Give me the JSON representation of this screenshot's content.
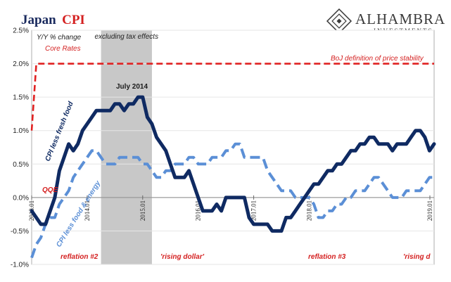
{
  "title": {
    "part1": "Japan",
    "part2": "CPI"
  },
  "logo": {
    "name": "ALHAMBRA",
    "sub": "INVESTMENTS"
  },
  "colors": {
    "navy": "#0f2a62",
    "light_blue": "#5b8fd6",
    "red": "#e02020",
    "shade": "#c8c8c8",
    "grid": "#e6e6e6"
  },
  "chart_data": {
    "type": "line",
    "ylabel": "Y/Y % change",
    "ylabel2": "Core Rates",
    "ylim": [
      -1.0,
      2.5
    ],
    "yticks": [
      "2.5%",
      "2.0%",
      "1.5%",
      "1.0%",
      "0.5%",
      "0.0%",
      "-0.5%",
      "-1.0%"
    ],
    "xticks": [
      "2013.01",
      "2014.01",
      "2015.01",
      "2016.01",
      "2017.01",
      "2018.01",
      "2019.01"
    ],
    "x_start": "2013.01",
    "x_end": "2019.01",
    "series": [
      {
        "name": "CPI less fresh food",
        "style": "solid",
        "values": [
          -0.2,
          -0.3,
          -0.4,
          -0.4,
          -0.2,
          0.0,
          0.4,
          0.6,
          0.8,
          0.7,
          0.8,
          1.0,
          1.1,
          1.2,
          1.3,
          1.3,
          1.3,
          1.3,
          1.4,
          1.4,
          1.3,
          1.4,
          1.4,
          1.5,
          1.5,
          1.2,
          1.1,
          0.9,
          0.8,
          0.7,
          0.5,
          0.3,
          0.3,
          0.3,
          0.4,
          0.2,
          0.0,
          -0.2,
          -0.2,
          -0.2,
          -0.1,
          -0.2,
          0.0,
          0.0,
          0.0,
          0.0,
          0.0,
          -0.3,
          -0.4,
          -0.4,
          -0.4,
          -0.4,
          -0.5,
          -0.5,
          -0.5,
          -0.3,
          -0.3,
          -0.2,
          -0.1,
          0.0,
          0.1,
          0.2,
          0.2,
          0.3,
          0.4,
          0.4,
          0.5,
          0.5,
          0.6,
          0.7,
          0.7,
          0.8,
          0.8,
          0.9,
          0.9,
          0.8,
          0.8,
          0.8,
          0.7,
          0.8,
          0.8,
          0.8,
          0.9,
          1.0,
          1.0,
          0.9,
          0.7,
          0.8
        ]
      },
      {
        "name": "CPI less food & energy",
        "style": "dashed",
        "values": [
          -0.9,
          -0.7,
          -0.6,
          -0.4,
          -0.3,
          -0.3,
          -0.1,
          0.0,
          0.1,
          0.3,
          0.4,
          0.5,
          0.6,
          0.7,
          0.7,
          0.6,
          0.5,
          0.5,
          0.5,
          0.6,
          0.6,
          0.6,
          0.6,
          0.6,
          0.5,
          0.5,
          0.4,
          0.3,
          0.3,
          0.4,
          0.4,
          0.5,
          0.5,
          0.5,
          0.6,
          0.6,
          0.5,
          0.5,
          0.5,
          0.6,
          0.6,
          0.6,
          0.7,
          0.7,
          0.8,
          0.8,
          0.6,
          0.6,
          0.6,
          0.6,
          0.6,
          0.4,
          0.3,
          0.2,
          0.1,
          0.1,
          0.1,
          0.0,
          0.0,
          0.0,
          0.0,
          -0.1,
          -0.3,
          -0.3,
          -0.2,
          -0.2,
          -0.1,
          -0.1,
          0.0,
          0.0,
          0.1,
          0.1,
          0.1,
          0.2,
          0.3,
          0.3,
          0.2,
          0.1,
          0.0,
          0.0,
          0.0,
          0.1,
          0.1,
          0.1,
          0.1,
          0.2,
          0.3,
          0.3
        ]
      },
      {
        "name": "BoJ definition of price stability",
        "style": "dashed-red",
        "values": [
          1.0,
          2.0,
          2.0,
          2.0,
          2.0,
          2.0,
          2.0,
          2.0,
          2.0,
          2.0,
          2.0,
          2.0,
          2.0,
          2.0,
          2.0,
          2.0,
          2.0,
          2.0,
          2.0,
          2.0,
          2.0,
          2.0,
          2.0,
          2.0,
          2.0,
          2.0,
          2.0,
          2.0,
          2.0,
          2.0,
          2.0,
          2.0,
          2.0,
          2.0,
          2.0,
          2.0,
          2.0,
          2.0,
          2.0,
          2.0,
          2.0,
          2.0,
          2.0,
          2.0,
          2.0,
          2.0,
          2.0,
          2.0,
          2.0,
          2.0,
          2.0,
          2.0,
          2.0,
          2.0,
          2.0,
          2.0,
          2.0,
          2.0,
          2.0,
          2.0,
          2.0,
          2.0,
          2.0,
          2.0,
          2.0,
          2.0,
          2.0,
          2.0,
          2.0,
          2.0,
          2.0,
          2.0,
          2.0,
          2.0,
          2.0,
          2.0,
          2.0,
          2.0,
          2.0,
          2.0,
          2.0,
          2.0,
          2.0,
          2.0,
          2.0,
          2.0,
          2.0,
          2.0
        ]
      }
    ],
    "shaded_region": {
      "label": "excluding tax effects",
      "from_index": 15,
      "to_index": 26
    },
    "annotations": {
      "july": "July 2014",
      "boj": "BoJ definition of price stability",
      "qqe": "QQE",
      "fresh_label": "CPI less fresh food",
      "energy_label": "CPI less food & energy",
      "reflation2": "reflation #2",
      "rising_dollar": "'rising dollar'",
      "reflation3": "reflation #3",
      "rising_d": "'rising d"
    },
    "grid": true
  }
}
